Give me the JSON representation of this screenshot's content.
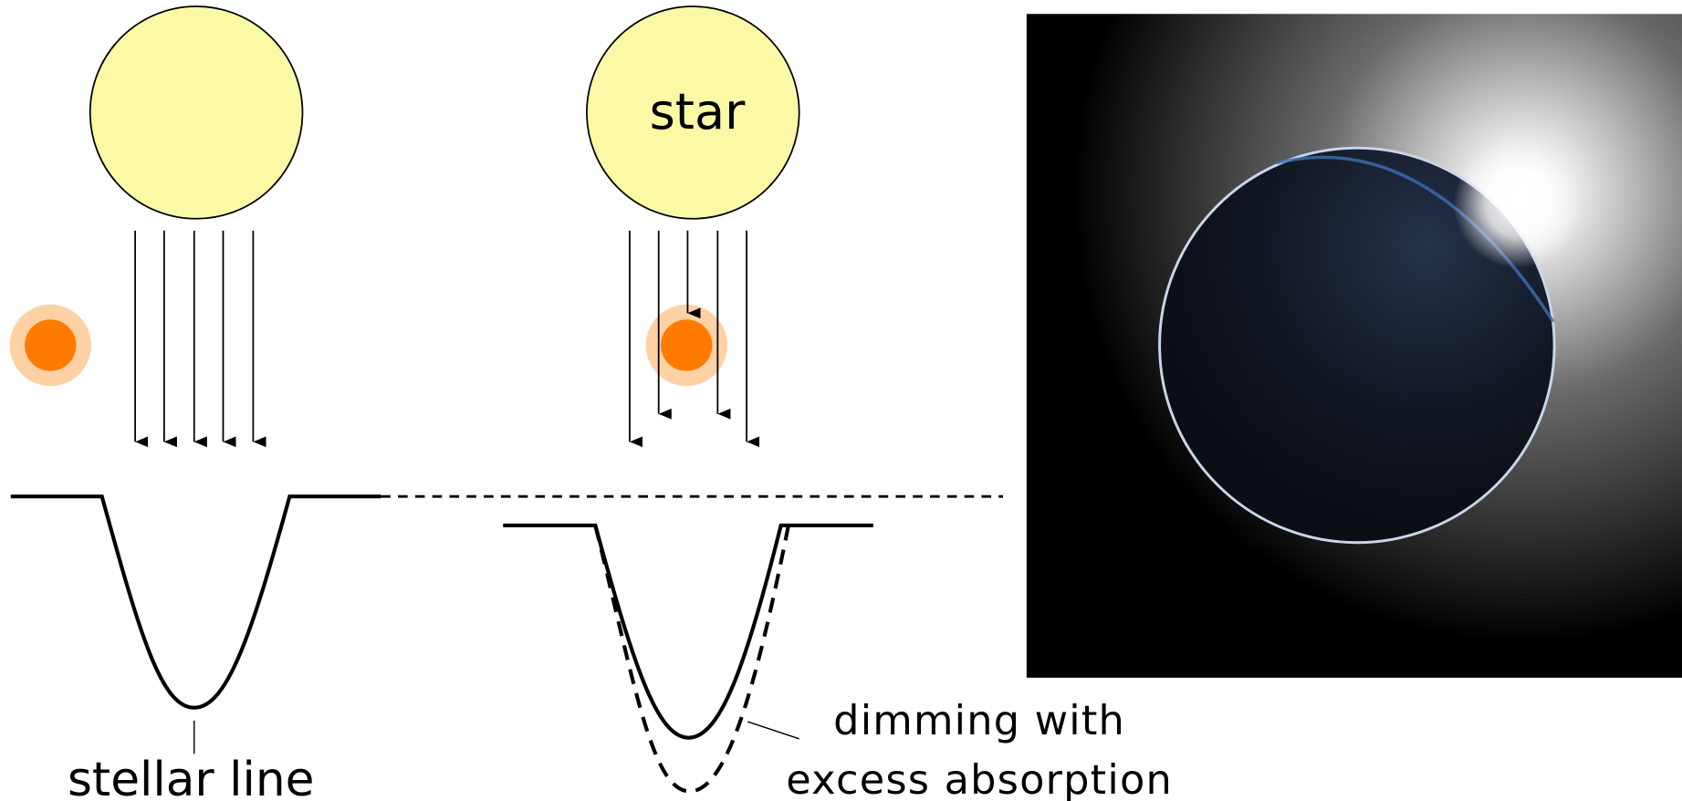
{
  "star_label": "star",
  "stellar_line_label": "stellar line",
  "dimming_label": [
    "dimming with",
    "excess absorption"
  ]
}
